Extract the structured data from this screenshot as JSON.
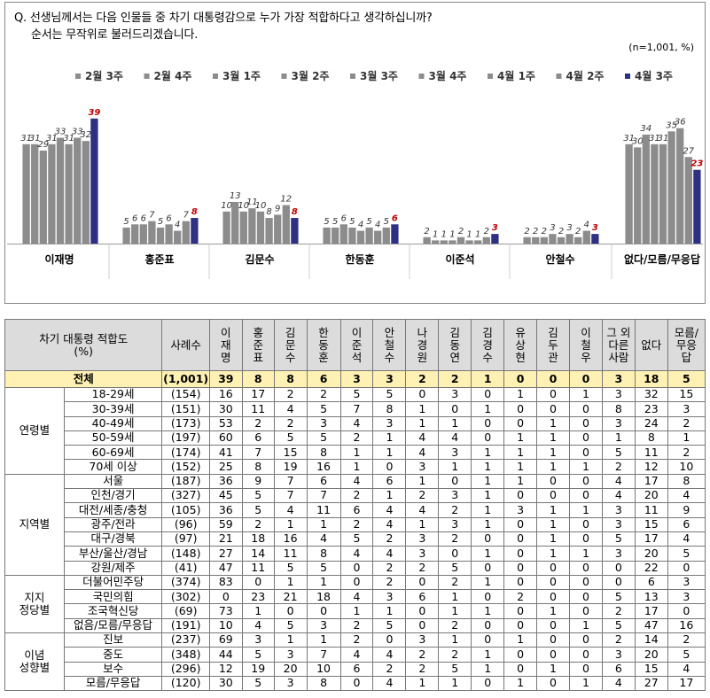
{
  "question": {
    "line1": "Q. 선생님께서는 다음 인물들 중 차기 대통령감으로 누가 가장 적합하다고 생각하십니까?",
    "line2": "순서는 무작위로 불러드리겠습니다.",
    "n": "(n=1,001, %)"
  },
  "chart_data": {
    "type": "bar",
    "title": "차기 대통령 적합도",
    "categories": [
      "이재명",
      "홍준표",
      "김문수",
      "한동훈",
      "이준석",
      "안철수",
      "없다/모름/무응답"
    ],
    "series": [
      {
        "name": "2월 3주",
        "values": [
          31,
          5,
          10,
          5,
          2,
          2,
          31
        ]
      },
      {
        "name": "2월 4주",
        "values": [
          31,
          6,
          13,
          5,
          1,
          2,
          30
        ]
      },
      {
        "name": "3월 1주",
        "values": [
          29,
          6,
          10,
          6,
          1,
          2,
          34
        ]
      },
      {
        "name": "3월 2주",
        "values": [
          31,
          7,
          11,
          5,
          1,
          3,
          31
        ]
      },
      {
        "name": "3월 3주",
        "values": [
          33,
          5,
          10,
          4,
          2,
          2,
          31
        ]
      },
      {
        "name": "3월 4주",
        "values": [
          31,
          6,
          8,
          5,
          1,
          3,
          35
        ]
      },
      {
        "name": "4월 1주",
        "values": [
          33,
          4,
          9,
          4,
          1,
          2,
          36
        ]
      },
      {
        "name": "4월 2주",
        "values": [
          32,
          7,
          12,
          5,
          2,
          4,
          27
        ]
      },
      {
        "name": "4월 3주",
        "values": [
          39,
          8,
          8,
          6,
          3,
          3,
          23
        ]
      }
    ],
    "ylim": [
      0,
      45
    ],
    "colors": {
      "past": "#8c8c8c",
      "latest": "#2e3082",
      "latest_label": "#c00000"
    },
    "legend": "top"
  },
  "table": {
    "header": {
      "title": "차기 대통령 적합도\n(%)",
      "sample": "사례수",
      "cols": [
        "이\n재\n명",
        "홍\n준\n표",
        "김\n문\n수",
        "한\n동\n훈",
        "이\n준\n석",
        "안\n철\n수",
        "나\n경\n원",
        "김\n동\n연",
        "김\n경\n수",
        "유\n상\n현",
        "김\n두\n관",
        "이\n철\n우",
        "그 외\n다른\n사람",
        "없다",
        "모름/\n무응\n답"
      ]
    },
    "total": {
      "label": "전체",
      "sample": "(1,001)",
      "values": [
        "39",
        "8",
        "8",
        "6",
        "3",
        "3",
        "2",
        "2",
        "1",
        "0",
        "0",
        "0",
        "3",
        "18",
        "5"
      ]
    },
    "groups": [
      {
        "name": "연령별",
        "rows": [
          {
            "label": "18-29세",
            "sample": "(154)",
            "values": [
              "16",
              "17",
              "2",
              "2",
              "5",
              "5",
              "0",
              "3",
              "0",
              "1",
              "0",
              "1",
              "3",
              "32",
              "15"
            ]
          },
          {
            "label": "30-39세",
            "sample": "(151)",
            "values": [
              "30",
              "11",
              "4",
              "5",
              "7",
              "8",
              "1",
              "0",
              "1",
              "0",
              "0",
              "0",
              "8",
              "23",
              "3"
            ]
          },
          {
            "label": "40-49세",
            "sample": "(173)",
            "values": [
              "53",
              "2",
              "2",
              "3",
              "4",
              "3",
              "1",
              "1",
              "0",
              "0",
              "1",
              "0",
              "3",
              "24",
              "2"
            ]
          },
          {
            "label": "50-59세",
            "sample": "(197)",
            "values": [
              "60",
              "6",
              "5",
              "5",
              "2",
              "1",
              "4",
              "4",
              "0",
              "1",
              "1",
              "0",
              "1",
              "8",
              "1"
            ]
          },
          {
            "label": "60-69세",
            "sample": "(174)",
            "values": [
              "41",
              "7",
              "15",
              "8",
              "1",
              "1",
              "4",
              "3",
              "1",
              "1",
              "1",
              "0",
              "5",
              "11",
              "2"
            ]
          },
          {
            "label": "70세 이상",
            "sample": "(152)",
            "values": [
              "25",
              "8",
              "19",
              "16",
              "1",
              "0",
              "3",
              "1",
              "1",
              "1",
              "1",
              "1",
              "2",
              "12",
              "10"
            ]
          }
        ]
      },
      {
        "name": "지역별",
        "rows": [
          {
            "label": "서울",
            "sample": "(187)",
            "values": [
              "36",
              "9",
              "7",
              "6",
              "4",
              "6",
              "1",
              "0",
              "1",
              "1",
              "0",
              "0",
              "4",
              "17",
              "8"
            ]
          },
          {
            "label": "인천/경기",
            "sample": "(327)",
            "values": [
              "45",
              "5",
              "7",
              "7",
              "2",
              "1",
              "2",
              "3",
              "1",
              "0",
              "0",
              "0",
              "4",
              "20",
              "4"
            ]
          },
          {
            "label": "대전/세종/충청",
            "sample": "(105)",
            "values": [
              "36",
              "5",
              "4",
              "11",
              "6",
              "4",
              "4",
              "2",
              "1",
              "3",
              "1",
              "1",
              "3",
              "11",
              "9"
            ]
          },
          {
            "label": "광주/전라",
            "sample": "(96)",
            "values": [
              "59",
              "2",
              "1",
              "1",
              "2",
              "4",
              "1",
              "3",
              "1",
              "0",
              "1",
              "0",
              "3",
              "15",
              "6"
            ]
          },
          {
            "label": "대구/경북",
            "sample": "(97)",
            "values": [
              "21",
              "18",
              "16",
              "4",
              "5",
              "2",
              "3",
              "2",
              "0",
              "0",
              "1",
              "0",
              "5",
              "17",
              "4"
            ]
          },
          {
            "label": "부산/울산/경남",
            "sample": "(148)",
            "values": [
              "27",
              "14",
              "11",
              "8",
              "4",
              "4",
              "3",
              "0",
              "1",
              "0",
              "1",
              "1",
              "3",
              "20",
              "5"
            ]
          },
          {
            "label": "강원/제주",
            "sample": "(41)",
            "values": [
              "47",
              "11",
              "5",
              "5",
              "0",
              "2",
              "2",
              "5",
              "0",
              "0",
              "0",
              "0",
              "0",
              "22",
              "0"
            ]
          }
        ]
      },
      {
        "name": "지지\n정당별",
        "rows": [
          {
            "label": "더불어민주당",
            "sample": "(374)",
            "values": [
              "83",
              "0",
              "1",
              "1",
              "0",
              "2",
              "0",
              "2",
              "1",
              "0",
              "0",
              "0",
              "0",
              "6",
              "3"
            ]
          },
          {
            "label": "국민의힘",
            "sample": "(302)",
            "values": [
              "0",
              "23",
              "21",
              "18",
              "4",
              "3",
              "6",
              "1",
              "0",
              "2",
              "0",
              "0",
              "5",
              "13",
              "3"
            ]
          },
          {
            "label": "조국혁신당",
            "sample": "(69)",
            "values": [
              "73",
              "1",
              "0",
              "0",
              "1",
              "1",
              "0",
              "1",
              "1",
              "0",
              "1",
              "0",
              "2",
              "17",
              "0"
            ]
          },
          {
            "label": "없음/모름/무응답",
            "sample": "(191)",
            "values": [
              "10",
              "4",
              "5",
              "3",
              "2",
              "5",
              "0",
              "2",
              "0",
              "0",
              "0",
              "1",
              "5",
              "47",
              "16"
            ]
          }
        ]
      },
      {
        "name": "이념\n성향별",
        "rows": [
          {
            "label": "진보",
            "sample": "(237)",
            "values": [
              "69",
              "3",
              "1",
              "1",
              "2",
              "0",
              "3",
              "1",
              "0",
              "1",
              "0",
              "0",
              "2",
              "14",
              "2"
            ]
          },
          {
            "label": "중도",
            "sample": "(348)",
            "values": [
              "44",
              "5",
              "3",
              "7",
              "4",
              "4",
              "2",
              "2",
              "1",
              "0",
              "0",
              "0",
              "3",
              "20",
              "5"
            ]
          },
          {
            "label": "보수",
            "sample": "(296)",
            "values": [
              "12",
              "19",
              "20",
              "10",
              "6",
              "2",
              "2",
              "5",
              "1",
              "0",
              "1",
              "0",
              "6",
              "15",
              "4"
            ]
          },
          {
            "label": "모름/무응답",
            "sample": "(120)",
            "values": [
              "30",
              "5",
              "3",
              "8",
              "0",
              "4",
              "1",
              "1",
              "0",
              "1",
              "0",
              "1",
              "4",
              "27",
              "17"
            ]
          }
        ]
      }
    ]
  }
}
